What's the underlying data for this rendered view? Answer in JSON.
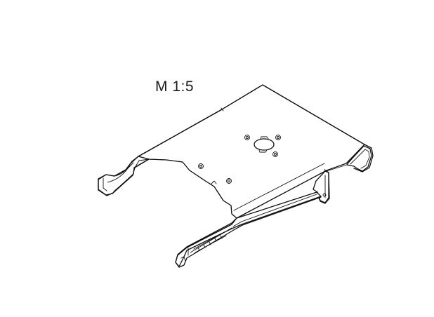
{
  "drawing": {
    "scale_label": "M 1:5"
  },
  "colors": {
    "line": "#111111",
    "background": "#ffffff"
  }
}
